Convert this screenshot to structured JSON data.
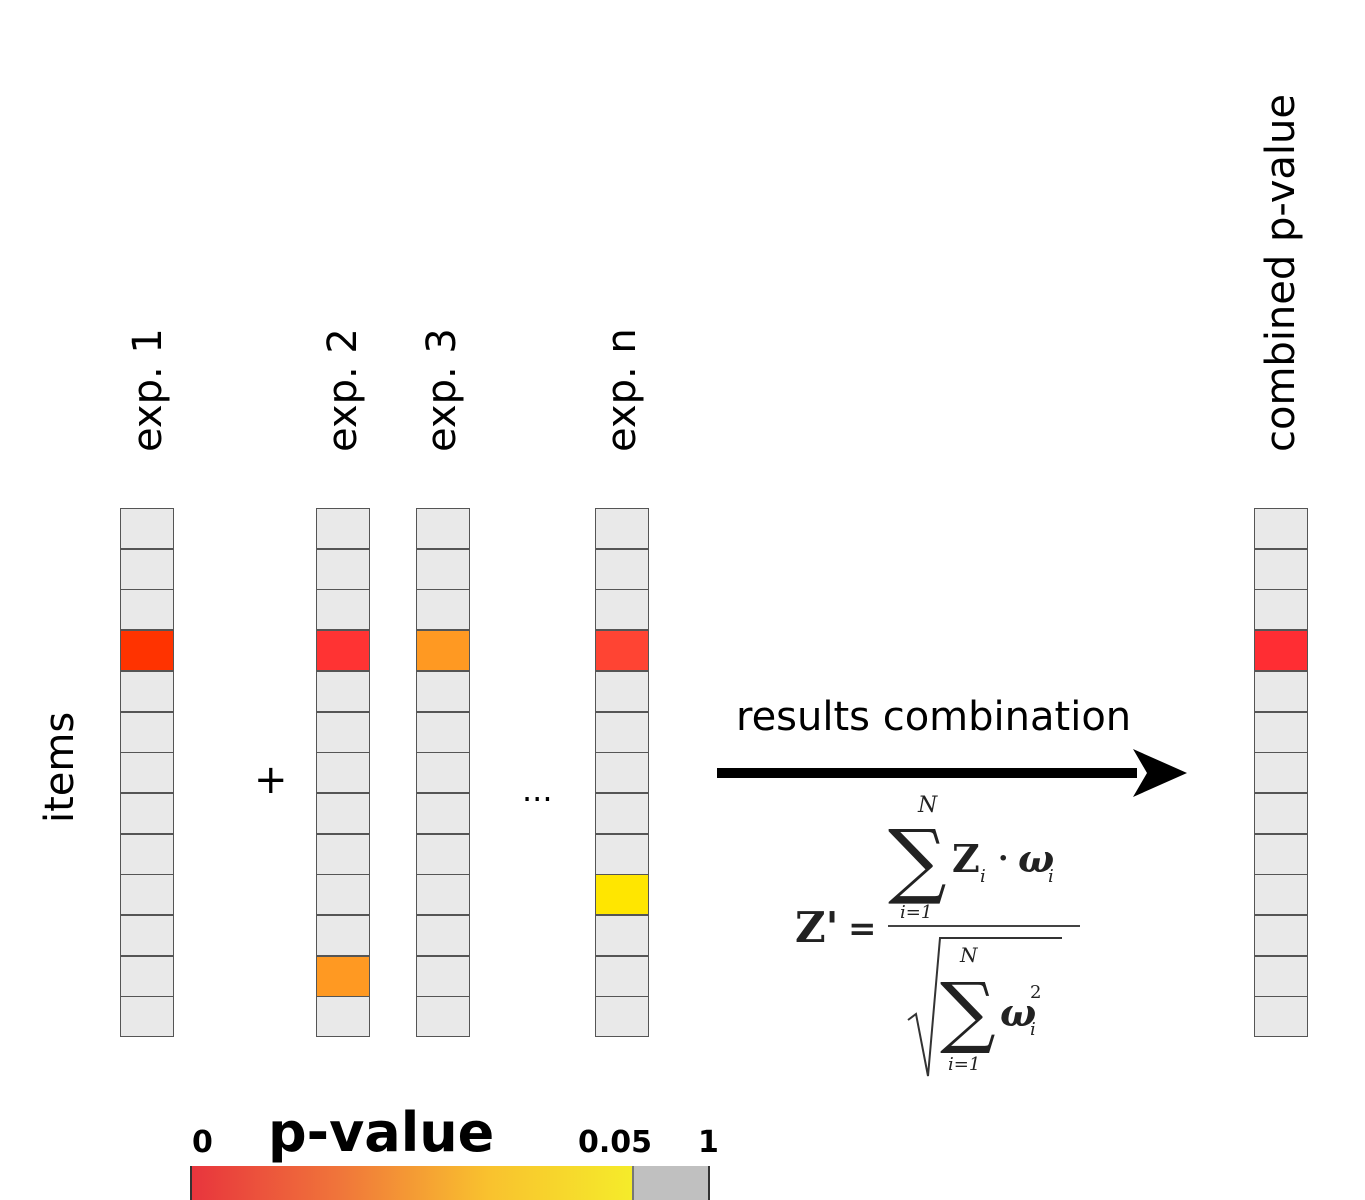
{
  "columns": [
    {
      "label": "exp. 1",
      "highlights": [
        {
          "row": 3,
          "color": "#ff3300"
        }
      ]
    },
    {
      "label": "exp. 2",
      "highlights": [
        {
          "row": 3,
          "color": "#ff3333"
        },
        {
          "row": 11,
          "color": "#ff9922"
        }
      ]
    },
    {
      "label": "exp. 3",
      "highlights": [
        {
          "row": 3,
          "color": "#ff9922"
        }
      ]
    },
    {
      "label": "exp. n",
      "highlights": [
        {
          "row": 3,
          "color": "#ff4433"
        },
        {
          "row": 9,
          "color": "#ffe600"
        }
      ]
    },
    {
      "label": "combined p-value",
      "highlights": [
        {
          "row": 3,
          "color": "#ff2d33"
        }
      ]
    }
  ],
  "rows_per_column": 13,
  "cell_color": "#e9e9e9",
  "items_label": "items",
  "plus_symbol": "+",
  "ellipsis": "...",
  "arrow_label": "results combination",
  "formula": {
    "lhs": "Z'",
    "equals": "=",
    "sum_upper": "N",
    "sum_lower": "i=1",
    "numerator_term": "Z",
    "numerator_subscript": "i",
    "dot": "·",
    "weight": "ω",
    "weight_subscript": "i",
    "denominator_exponent": "2"
  },
  "legend": {
    "title": "p-value",
    "tick_min": "0",
    "tick_threshold": "0.05",
    "tick_max": "1",
    "gradient_colors": [
      "#e8353d",
      "#f0753a",
      "#f9c12e",
      "#f5ec2a"
    ],
    "above_threshold_color": "#c0c0c0"
  }
}
